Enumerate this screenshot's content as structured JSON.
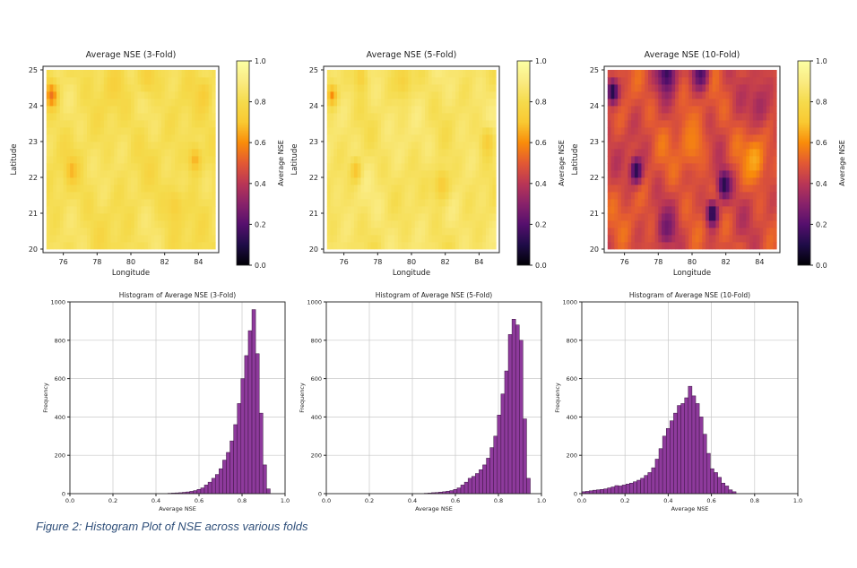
{
  "caption": "Figure 2: Histogram Plot of NSE across various folds",
  "colors": {
    "bar_fill": "#8e3a9c",
    "bar_edge": "#3a1440",
    "grid": "#c8c8c8",
    "caption": "#2f4f7a"
  },
  "chart_data": [
    {
      "type": "heatmap",
      "title": "Average NSE (3-Fold)",
      "xlabel": "Longitude",
      "ylabel": "Latitude",
      "xticks": [
        "76",
        "78",
        "80",
        "82",
        "84"
      ],
      "yticks": [
        "20",
        "21",
        "22",
        "23",
        "24",
        "25"
      ],
      "xlim": [
        74.8,
        85.2
      ],
      "ylim": [
        19.9,
        25.1
      ],
      "colorbar": {
        "label": "Average NSE",
        "ticks": [
          "0.0",
          "0.2",
          "0.4",
          "0.6",
          "0.8",
          "1.0"
        ],
        "range": [
          0,
          1
        ],
        "colormap": "inferno"
      },
      "grid": false,
      "base": 0.82,
      "amp": 0.06,
      "hotspots": [
        {
          "lon": 75.3,
          "lat": 24.3,
          "r": 0.35,
          "v": 0.55
        },
        {
          "lon": 76.5,
          "lat": 22.2,
          "r": 0.35,
          "v": 0.66
        },
        {
          "lon": 83.8,
          "lat": 22.5,
          "r": 0.4,
          "v": 0.66
        },
        {
          "lon": 82.6,
          "lat": 21.2,
          "r": 0.5,
          "v": 0.74
        },
        {
          "lon": 79.0,
          "lat": 24.6,
          "r": 0.5,
          "v": 0.74
        },
        {
          "lon": 81.0,
          "lat": 24.8,
          "r": 0.5,
          "v": 0.74
        },
        {
          "lon": 84.3,
          "lat": 24.3,
          "r": 0.4,
          "v": 0.72
        }
      ]
    },
    {
      "type": "heatmap",
      "title": "Average NSE (5-Fold)",
      "xlabel": "Longitude",
      "ylabel": "Latitude",
      "xticks": [
        "76",
        "78",
        "80",
        "82",
        "84"
      ],
      "yticks": [
        "20",
        "21",
        "22",
        "23",
        "24",
        "25"
      ],
      "xlim": [
        74.8,
        85.2
      ],
      "ylim": [
        19.9,
        25.1
      ],
      "colorbar": {
        "label": "Average NSE",
        "ticks": [
          "0.0",
          "0.2",
          "0.4",
          "0.6",
          "0.8",
          "1.0"
        ],
        "range": [
          0,
          1
        ],
        "colormap": "inferno"
      },
      "grid": false,
      "base": 0.85,
      "amp": 0.06,
      "hotspots": [
        {
          "lon": 75.3,
          "lat": 24.3,
          "r": 0.3,
          "v": 0.6
        },
        {
          "lon": 76.7,
          "lat": 22.2,
          "r": 0.3,
          "v": 0.68
        },
        {
          "lon": 81.8,
          "lat": 21.8,
          "r": 0.5,
          "v": 0.72
        },
        {
          "lon": 84.5,
          "lat": 23.0,
          "r": 0.4,
          "v": 0.72
        },
        {
          "lon": 79.5,
          "lat": 24.7,
          "r": 0.5,
          "v": 0.75
        },
        {
          "lon": 77.0,
          "lat": 24.8,
          "r": 0.4,
          "v": 0.74
        }
      ]
    },
    {
      "type": "heatmap",
      "title": "Average NSE (10-Fold)",
      "xlabel": "Longitude",
      "ylabel": "Latitude",
      "xticks": [
        "76",
        "78",
        "80",
        "82",
        "84"
      ],
      "yticks": [
        "20",
        "21",
        "22",
        "23",
        "24",
        "25"
      ],
      "xlim": [
        74.8,
        85.2
      ],
      "ylim": [
        19.9,
        25.1
      ],
      "colorbar": {
        "label": "Average NSE",
        "ticks": [
          "0.0",
          "0.2",
          "0.4",
          "0.6",
          "0.8",
          "1.0"
        ],
        "range": [
          0,
          1
        ],
        "colormap": "inferno"
      },
      "grid": false,
      "base": 0.47,
      "amp": 0.1,
      "hotspots": [
        {
          "lon": 75.3,
          "lat": 24.4,
          "r": 0.35,
          "v": 0.08
        },
        {
          "lon": 76.7,
          "lat": 22.2,
          "r": 0.35,
          "v": 0.1
        },
        {
          "lon": 81.9,
          "lat": 21.8,
          "r": 0.4,
          "v": 0.1
        },
        {
          "lon": 81.2,
          "lat": 21.0,
          "r": 0.35,
          "v": 0.08
        },
        {
          "lon": 78.5,
          "lat": 24.9,
          "r": 0.5,
          "v": 0.15
        },
        {
          "lon": 80.5,
          "lat": 24.9,
          "r": 0.5,
          "v": 0.18
        },
        {
          "lon": 83.7,
          "lat": 22.5,
          "r": 0.6,
          "v": 0.65
        },
        {
          "lon": 80.0,
          "lat": 23.0,
          "r": 0.8,
          "v": 0.58
        },
        {
          "lon": 78.5,
          "lat": 20.6,
          "r": 0.5,
          "v": 0.25
        },
        {
          "lon": 84.0,
          "lat": 24.0,
          "r": 0.6,
          "v": 0.35
        }
      ]
    },
    {
      "type": "bar",
      "title": "Histogram of Average NSE (3-Fold)",
      "xlabel": "Average NSE",
      "ylabel": "Frequency",
      "xticks": [
        "0.0",
        "0.2",
        "0.4",
        "0.6",
        "0.8",
        "1.0"
      ],
      "yticks": [
        "0",
        "200",
        "400",
        "600",
        "800",
        "1000"
      ],
      "xlim": [
        0,
        1
      ],
      "ylim": [
        0,
        1000
      ],
      "grid": true,
      "bin_width": 0.017,
      "bins": [
        {
          "x": 0.455,
          "y": 2
        },
        {
          "x": 0.472,
          "y": 3
        },
        {
          "x": 0.489,
          "y": 4
        },
        {
          "x": 0.506,
          "y": 5
        },
        {
          "x": 0.523,
          "y": 7
        },
        {
          "x": 0.54,
          "y": 9
        },
        {
          "x": 0.557,
          "y": 12
        },
        {
          "x": 0.574,
          "y": 16
        },
        {
          "x": 0.591,
          "y": 22
        },
        {
          "x": 0.608,
          "y": 30
        },
        {
          "x": 0.625,
          "y": 45
        },
        {
          "x": 0.642,
          "y": 60
        },
        {
          "x": 0.659,
          "y": 80
        },
        {
          "x": 0.676,
          "y": 100
        },
        {
          "x": 0.693,
          "y": 130
        },
        {
          "x": 0.71,
          "y": 175
        },
        {
          "x": 0.727,
          "y": 215
        },
        {
          "x": 0.744,
          "y": 275
        },
        {
          "x": 0.761,
          "y": 360
        },
        {
          "x": 0.778,
          "y": 470
        },
        {
          "x": 0.795,
          "y": 600
        },
        {
          "x": 0.812,
          "y": 720
        },
        {
          "x": 0.829,
          "y": 850
        },
        {
          "x": 0.846,
          "y": 960
        },
        {
          "x": 0.863,
          "y": 730
        },
        {
          "x": 0.88,
          "y": 420
        },
        {
          "x": 0.897,
          "y": 150
        },
        {
          "x": 0.914,
          "y": 25
        }
      ]
    },
    {
      "type": "bar",
      "title": "Histogram of Average NSE (5-Fold)",
      "xlabel": "Average NSE",
      "ylabel": "Frequency",
      "xticks": [
        "0.0",
        "0.2",
        "0.4",
        "0.6",
        "0.8",
        "1.0"
      ],
      "yticks": [
        "0",
        "200",
        "400",
        "600",
        "800",
        "1000"
      ],
      "xlim": [
        0,
        1
      ],
      "ylim": [
        0,
        1000
      ],
      "grid": true,
      "bin_width": 0.017,
      "bins": [
        {
          "x": 0.455,
          "y": 2
        },
        {
          "x": 0.472,
          "y": 3
        },
        {
          "x": 0.489,
          "y": 5
        },
        {
          "x": 0.506,
          "y": 6
        },
        {
          "x": 0.523,
          "y": 8
        },
        {
          "x": 0.54,
          "y": 10
        },
        {
          "x": 0.557,
          "y": 13
        },
        {
          "x": 0.574,
          "y": 16
        },
        {
          "x": 0.591,
          "y": 22
        },
        {
          "x": 0.608,
          "y": 30
        },
        {
          "x": 0.625,
          "y": 45
        },
        {
          "x": 0.642,
          "y": 60
        },
        {
          "x": 0.659,
          "y": 80
        },
        {
          "x": 0.676,
          "y": 90
        },
        {
          "x": 0.693,
          "y": 105
        },
        {
          "x": 0.71,
          "y": 125
        },
        {
          "x": 0.727,
          "y": 150
        },
        {
          "x": 0.744,
          "y": 185
        },
        {
          "x": 0.761,
          "y": 240
        },
        {
          "x": 0.778,
          "y": 300
        },
        {
          "x": 0.795,
          "y": 410
        },
        {
          "x": 0.812,
          "y": 520
        },
        {
          "x": 0.829,
          "y": 640
        },
        {
          "x": 0.846,
          "y": 830
        },
        {
          "x": 0.863,
          "y": 910
        },
        {
          "x": 0.88,
          "y": 880
        },
        {
          "x": 0.897,
          "y": 800
        },
        {
          "x": 0.914,
          "y": 390
        },
        {
          "x": 0.931,
          "y": 80
        }
      ]
    },
    {
      "type": "bar",
      "title": "Histogram of Average NSE (10-Fold)",
      "xlabel": "Average NSE",
      "ylabel": "Frequency",
      "xticks": [
        "0.0",
        "0.2",
        "0.4",
        "0.6",
        "0.8",
        "1.0"
      ],
      "yticks": [
        "0",
        "200",
        "400",
        "600",
        "800",
        "1000"
      ],
      "xlim": [
        0,
        1
      ],
      "ylim": [
        0,
        1000
      ],
      "grid": true,
      "bin_width": 0.017,
      "bins": [
        {
          "x": 0.0,
          "y": 10
        },
        {
          "x": 0.017,
          "y": 12
        },
        {
          "x": 0.034,
          "y": 15
        },
        {
          "x": 0.051,
          "y": 18
        },
        {
          "x": 0.068,
          "y": 20
        },
        {
          "x": 0.085,
          "y": 22
        },
        {
          "x": 0.102,
          "y": 25
        },
        {
          "x": 0.119,
          "y": 30
        },
        {
          "x": 0.136,
          "y": 35
        },
        {
          "x": 0.153,
          "y": 42
        },
        {
          "x": 0.17,
          "y": 40
        },
        {
          "x": 0.187,
          "y": 45
        },
        {
          "x": 0.204,
          "y": 50
        },
        {
          "x": 0.221,
          "y": 55
        },
        {
          "x": 0.238,
          "y": 62
        },
        {
          "x": 0.255,
          "y": 70
        },
        {
          "x": 0.272,
          "y": 80
        },
        {
          "x": 0.289,
          "y": 95
        },
        {
          "x": 0.306,
          "y": 110
        },
        {
          "x": 0.323,
          "y": 135
        },
        {
          "x": 0.34,
          "y": 180
        },
        {
          "x": 0.357,
          "y": 235
        },
        {
          "x": 0.374,
          "y": 300
        },
        {
          "x": 0.391,
          "y": 340
        },
        {
          "x": 0.408,
          "y": 380
        },
        {
          "x": 0.425,
          "y": 420
        },
        {
          "x": 0.442,
          "y": 460
        },
        {
          "x": 0.459,
          "y": 470
        },
        {
          "x": 0.476,
          "y": 500
        },
        {
          "x": 0.493,
          "y": 560
        },
        {
          "x": 0.51,
          "y": 510
        },
        {
          "x": 0.527,
          "y": 470
        },
        {
          "x": 0.544,
          "y": 400
        },
        {
          "x": 0.561,
          "y": 310
        },
        {
          "x": 0.578,
          "y": 210
        },
        {
          "x": 0.595,
          "y": 130
        },
        {
          "x": 0.612,
          "y": 110
        },
        {
          "x": 0.629,
          "y": 85
        },
        {
          "x": 0.646,
          "y": 55
        },
        {
          "x": 0.663,
          "y": 40
        },
        {
          "x": 0.68,
          "y": 20
        },
        {
          "x": 0.697,
          "y": 10
        }
      ]
    }
  ]
}
